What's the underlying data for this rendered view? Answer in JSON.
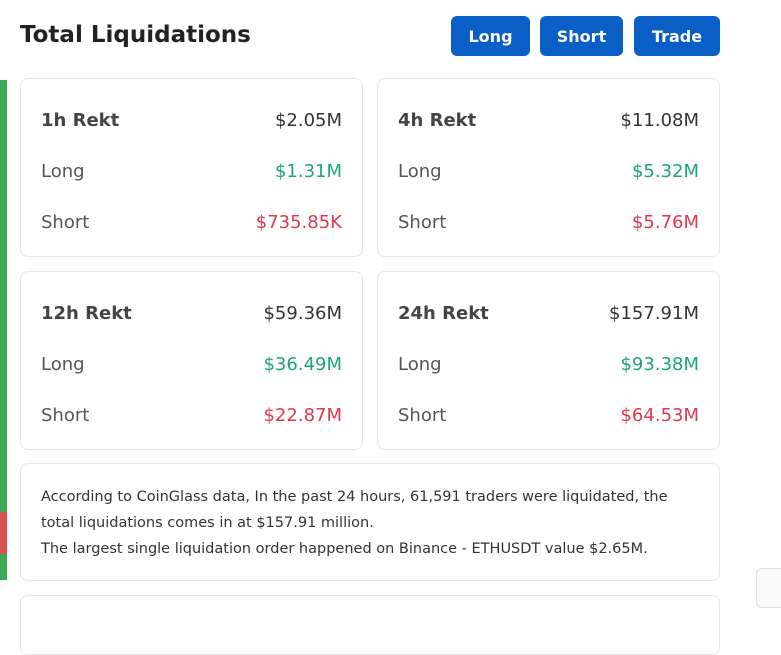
{
  "header": {
    "title": "Total Liquidations",
    "buttons": [
      "Long",
      "Short",
      "Trade"
    ]
  },
  "cards": [
    {
      "title": "1h Rekt",
      "total": "$2.05M",
      "rows": [
        {
          "label": "Long",
          "value": "$1.31M"
        },
        {
          "label": "Short",
          "value": "$735.85K"
        }
      ]
    },
    {
      "title": "4h Rekt",
      "total": "$11.08M",
      "rows": [
        {
          "label": "Long",
          "value": "$5.32M"
        },
        {
          "label": "Short",
          "value": "$5.76M"
        }
      ]
    },
    {
      "title": "12h Rekt",
      "total": "$59.36M",
      "rows": [
        {
          "label": "Long",
          "value": "$36.49M"
        },
        {
          "label": "Short",
          "value": "$22.87M"
        }
      ]
    },
    {
      "title": "24h Rekt",
      "total": "$157.91M",
      "rows": [
        {
          "label": "Long",
          "value": "$93.38M"
        },
        {
          "label": "Short",
          "value": "$64.53M"
        }
      ]
    }
  ],
  "summary": {
    "paragraphs": [
      "According to CoinGlass data, In the past 24 hours, 61,591 traders were liquidated, the total liquidations comes in at $157.91 million.",
      "The largest single liquidation order happened on Binance - ETHUSDT value $2.65M."
    ]
  }
}
